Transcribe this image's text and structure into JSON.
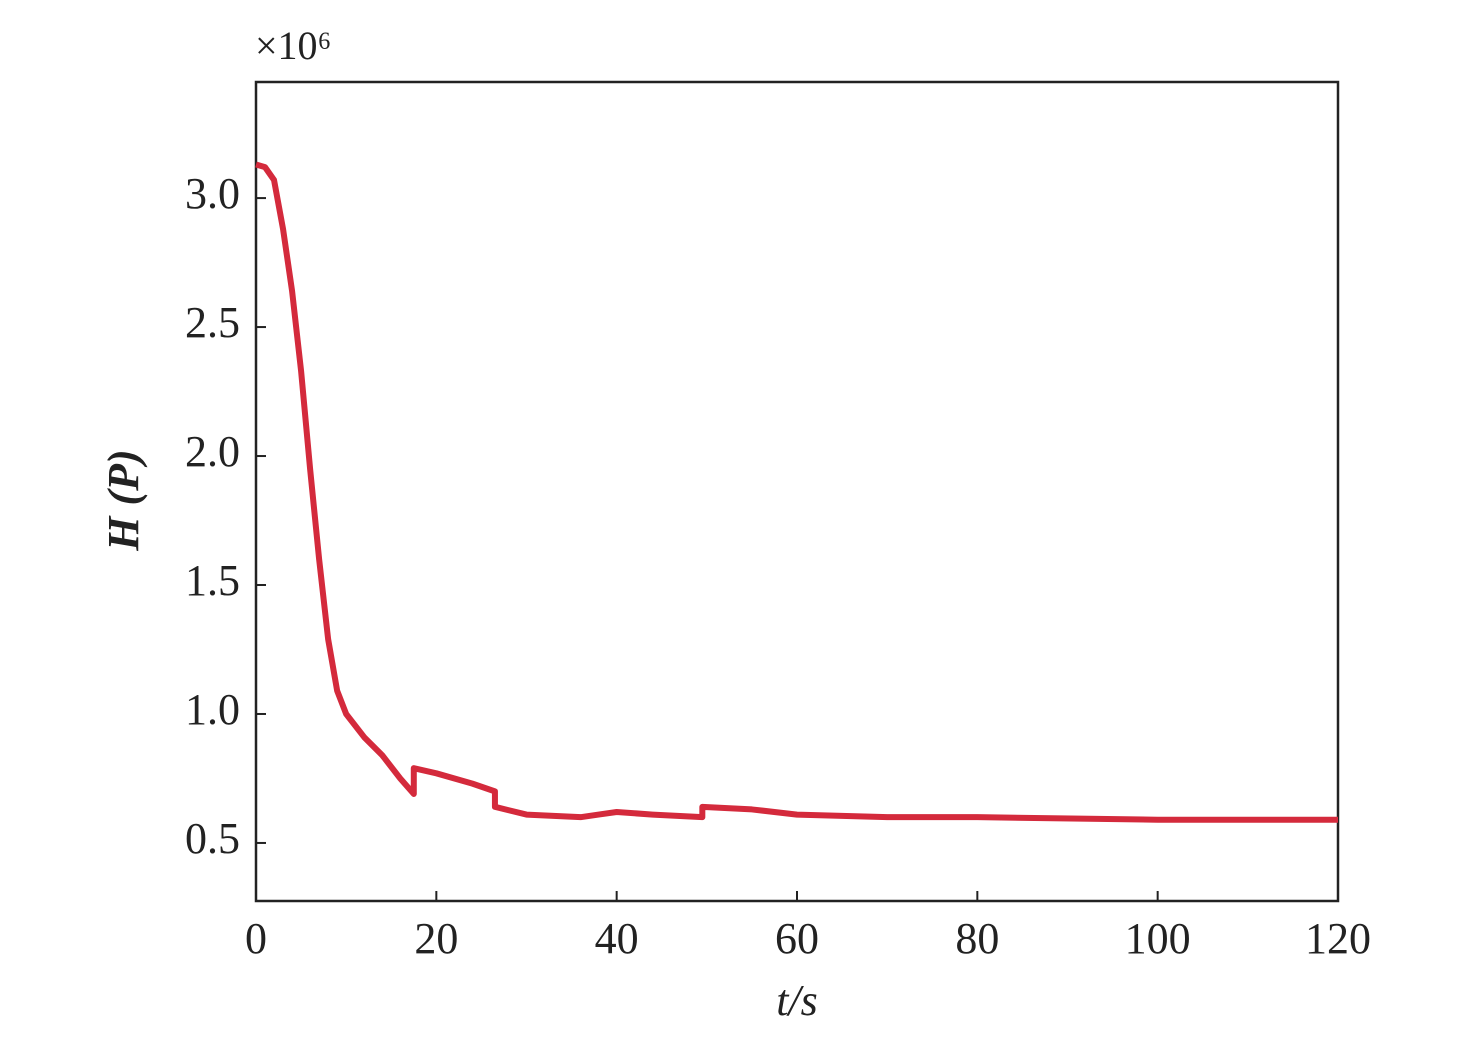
{
  "chart_data": {
    "type": "line",
    "multiplier": "×10⁶",
    "xlabel": "t/s",
    "ylabel": "H (P)",
    "x": [
      0,
      1,
      2,
      3,
      4,
      5,
      6,
      7,
      8,
      9,
      10,
      12,
      14,
      16,
      17.5,
      17.5,
      20,
      24,
      26.5,
      26.5,
      30,
      36,
      38,
      40,
      44,
      49.5,
      49.5,
      55,
      60,
      70,
      80,
      100,
      120
    ],
    "series": [
      {
        "color": "#d42a3c",
        "values": [
          3.13,
          3.12,
          3.07,
          2.88,
          2.64,
          2.33,
          1.95,
          1.6,
          1.29,
          1.09,
          1.0,
          0.91,
          0.84,
          0.75,
          0.69,
          0.79,
          0.77,
          0.73,
          0.7,
          0.64,
          0.61,
          0.6,
          0.61,
          0.62,
          0.61,
          0.6,
          0.64,
          0.63,
          0.61,
          0.6,
          0.6,
          0.59,
          0.59
        ]
      }
    ],
    "xlim": [
      0,
      120
    ],
    "xticks": [
      0,
      20,
      40,
      60,
      80,
      100,
      120
    ],
    "ylim": [
      0.275,
      3.45
    ],
    "yticks": [
      0.5,
      {
        "value": 1,
        "label": "1.0"
      },
      1.5,
      {
        "value": 2,
        "label": "2.0"
      },
      2.5,
      {
        "value": 3,
        "label": "3.0"
      }
    ]
  }
}
